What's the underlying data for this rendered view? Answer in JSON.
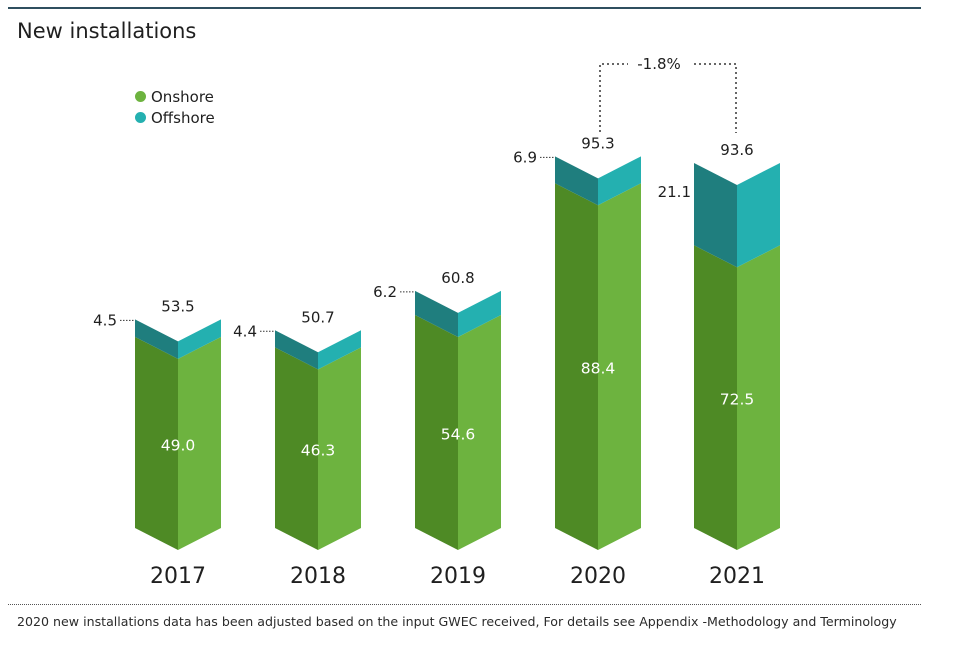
{
  "title": "New installations",
  "legend": {
    "items": [
      {
        "label": "Onshore",
        "color": "#6db33f"
      },
      {
        "label": "Offshore",
        "color": "#24b0b0"
      }
    ]
  },
  "comparison": {
    "label": "-1.8%",
    "from": "2020",
    "to": "2021"
  },
  "footnote": "2020 new installations data has been adjusted based on the input GWEC received, For details see Appendix -Methodology and Terminology",
  "colors": {
    "onshore_light": "#6db33f",
    "onshore_dark": "#4e8a25",
    "offshore_light": "#24b0b0",
    "offshore_dark": "#1f7e7e",
    "rule": "#2f4f5f"
  },
  "chart_data": {
    "type": "bar",
    "stacked": true,
    "categories": [
      "2017",
      "2018",
      "2019",
      "2020",
      "2021"
    ],
    "series": [
      {
        "name": "Onshore",
        "values": [
          49.0,
          46.3,
          54.6,
          88.4,
          72.5
        ]
      },
      {
        "name": "Offshore",
        "values": [
          4.5,
          4.4,
          6.2,
          6.9,
          21.1
        ]
      }
    ],
    "totals": [
      53.5,
      50.7,
      60.8,
      95.3,
      93.6
    ],
    "labels": {
      "onshore": [
        "49.0",
        "46.3",
        "54.6",
        "88.4",
        "72.5"
      ],
      "offshore": [
        "4.5",
        "4.4",
        "6.2",
        "6.9",
        "21.1"
      ],
      "totals": [
        "53.5",
        "50.7",
        "60.8",
        "95.3",
        "93.6"
      ]
    },
    "title": "New installations",
    "legend_position": "top-left",
    "grid": false
  }
}
